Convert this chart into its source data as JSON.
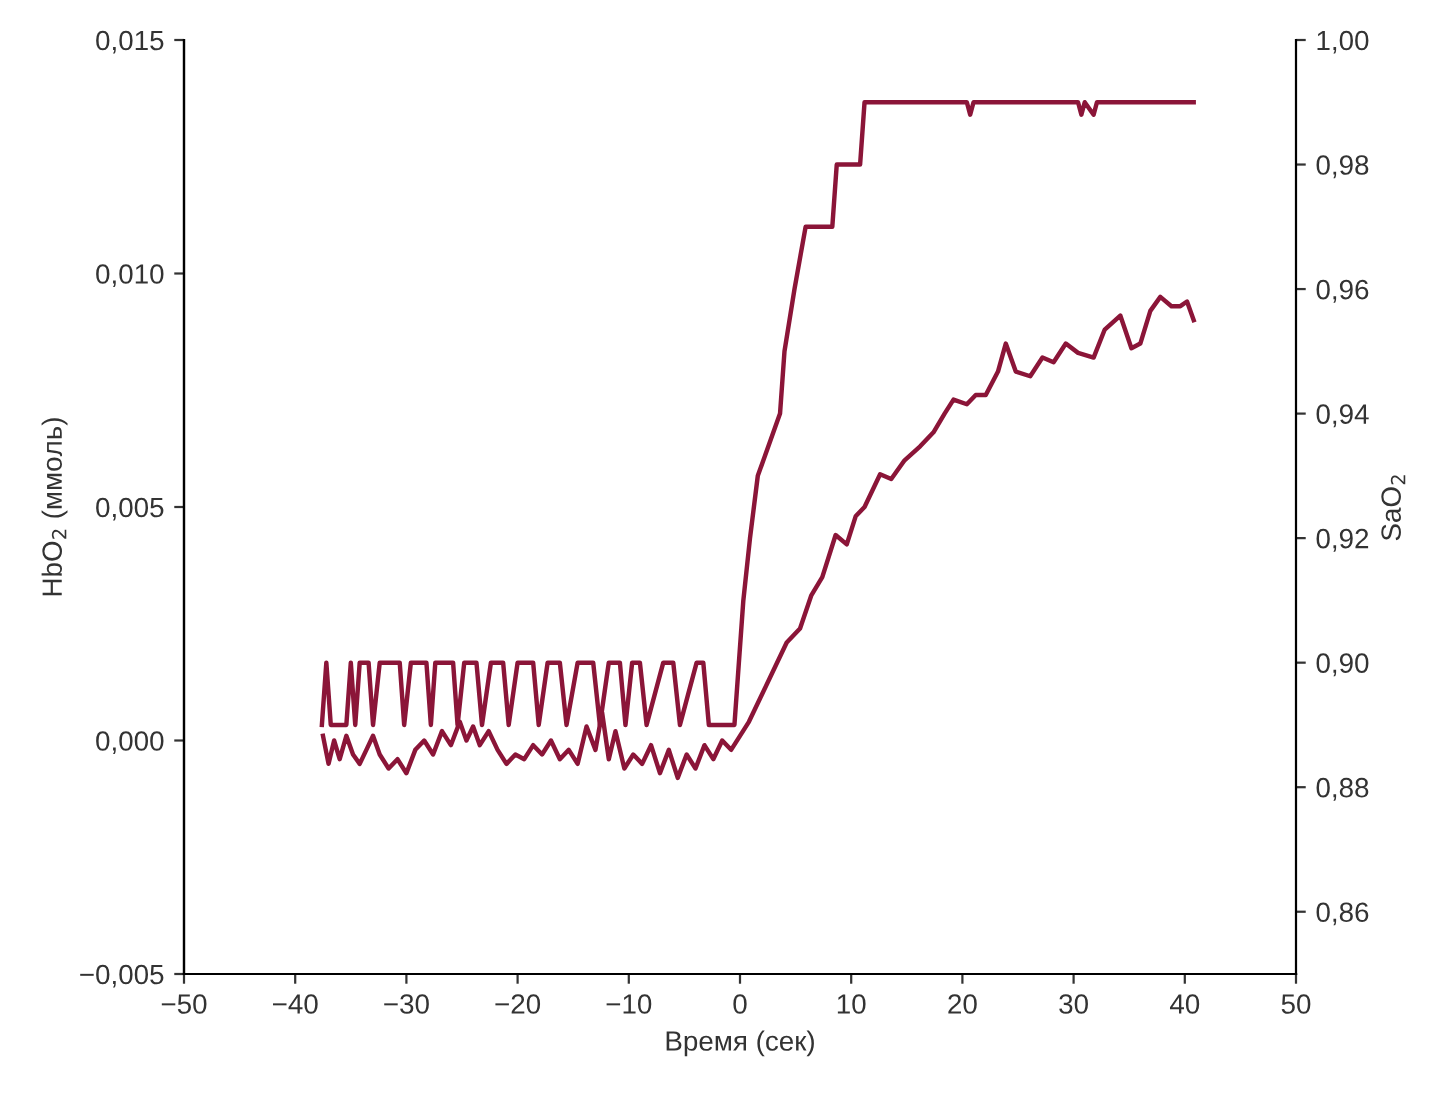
{
  "chart_data": {
    "type": "line",
    "xlabel": "Время (сек)",
    "ylabel": "HbO$_{2}$ (ммоль)",
    "y2label": "SaO$_{2}$",
    "xlim": [
      -50,
      50
    ],
    "xticks": [
      {
        "value": -50,
        "label": "−50"
      },
      {
        "value": -40,
        "label": "−40"
      },
      {
        "value": -30,
        "label": "−30"
      },
      {
        "value": -20,
        "label": "−20"
      },
      {
        "value": -10,
        "label": "−10"
      },
      0,
      10,
      20,
      30,
      40,
      50
    ],
    "ylim": [
      -0.005,
      0.015
    ],
    "yticks": [
      {
        "value": -0.005,
        "label": "−0,005"
      },
      {
        "value": 0,
        "label": "0,000"
      },
      {
        "value": 0.005,
        "label": "0,005"
      },
      {
        "value": 0.01,
        "label": "0,010"
      },
      {
        "value": 0.015,
        "label": "0,015"
      }
    ],
    "y2lim": [
      0.85,
      1.0
    ],
    "y2ticks": [
      {
        "value": 0.86,
        "label": "0,86"
      },
      {
        "value": 0.88,
        "label": "0,88"
      },
      {
        "value": 0.9,
        "label": "0,90"
      },
      {
        "value": 0.92,
        "label": "0,92"
      },
      {
        "value": 0.94,
        "label": "0,94"
      },
      {
        "value": 0.96,
        "label": "0,96"
      },
      {
        "value": 0.98,
        "label": "0,98"
      },
      {
        "value": 1.0,
        "label": "1,00"
      }
    ],
    "series": [
      {
        "color": "#8b1538",
        "axis": "y2",
        "x": [
          -37.6,
          -37.2,
          -36.8,
          -35.4,
          -35.0,
          -34.6,
          -34.2,
          -33.4,
          -33.0,
          -32.4,
          -30.6,
          -30.2,
          -29.6,
          -28.2,
          -27.8,
          -27.4,
          -25.8,
          -25.4,
          -24.8,
          -23.7,
          -23.2,
          -22.4,
          -21.3,
          -20.8,
          -20.0,
          -18.6,
          -18.1,
          -17.3,
          -16.2,
          -15.6,
          -14.6,
          -13.2,
          -12.6,
          -11.8,
          -10.8,
          -10.3,
          -9.7,
          -9.0,
          -8.4,
          -6.9,
          -6.0,
          -5.4,
          -3.9,
          -3.3,
          -2.8,
          -0.5,
          0.3,
          0.9,
          1.6,
          3.6,
          4.0,
          4.9,
          5.9,
          8.3,
          8.7,
          10.8,
          11.2,
          20.4,
          20.7,
          21.0,
          30.4,
          30.7,
          31.0,
          31.8,
          32.1,
          40.8
        ],
        "values": [
          0.89,
          0.9,
          0.89,
          0.89,
          0.9,
          0.89,
          0.9,
          0.9,
          0.89,
          0.9,
          0.9,
          0.89,
          0.9,
          0.9,
          0.89,
          0.9,
          0.9,
          0.89,
          0.9,
          0.9,
          0.89,
          0.9,
          0.9,
          0.89,
          0.9,
          0.9,
          0.89,
          0.9,
          0.9,
          0.89,
          0.9,
          0.9,
          0.89,
          0.9,
          0.9,
          0.89,
          0.9,
          0.9,
          0.89,
          0.9,
          0.9,
          0.89,
          0.9,
          0.9,
          0.89,
          0.89,
          0.91,
          0.92,
          0.93,
          0.94,
          0.95,
          0.96,
          0.97,
          0.97,
          0.98,
          0.98,
          0.99,
          0.99,
          0.988,
          0.99,
          0.99,
          0.988,
          0.99,
          0.988,
          0.99,
          0.99
        ]
      },
      {
        "color": "#8b1538",
        "axis": "y",
        "x": [
          -37.5,
          -37.0,
          -36.5,
          -36.0,
          -35.4,
          -34.8,
          -34.2,
          -33.6,
          -33.0,
          -32.4,
          -31.6,
          -30.8,
          -30.0,
          -29.2,
          -28.4,
          -27.6,
          -26.8,
          -26.0,
          -25.2,
          -24.6,
          -24.0,
          -23.4,
          -22.6,
          -21.8,
          -21.0,
          -20.2,
          -19.4,
          -18.6,
          -17.8,
          -17.0,
          -16.2,
          -15.4,
          -14.6,
          -13.8,
          -13.0,
          -12.4,
          -11.8,
          -11.2,
          -10.4,
          -9.6,
          -8.8,
          -8.0,
          -7.2,
          -6.4,
          -5.6,
          -4.8,
          -4.0,
          -3.2,
          -2.4,
          -1.6,
          -0.8,
          0.0,
          0.8,
          1.8,
          3.0,
          4.2,
          5.4,
          6.4,
          7.4,
          8.6,
          9.6,
          10.4,
          11.2,
          12.0,
          12.6,
          13.6,
          14.8,
          16.2,
          17.4,
          18.4,
          19.2,
          20.4,
          21.2,
          22.1,
          23.2,
          23.9,
          24.8,
          26.1,
          27.2,
          28.2,
          29.3,
          30.4,
          31.8,
          32.8,
          34.2,
          35.2,
          36.0,
          36.9,
          37.8,
          38.8,
          39.6,
          40.2,
          40.8
        ],
        "values": [
          0.0001,
          -0.0005,
          0.0,
          -0.0004,
          0.0001,
          -0.0003,
          -0.0005,
          -0.0002,
          0.0001,
          -0.0003,
          -0.0006,
          -0.0004,
          -0.0007,
          -0.0002,
          0.0,
          -0.0003,
          0.0002,
          -0.0001,
          0.0004,
          0.0,
          0.0003,
          -0.0001,
          0.0002,
          -0.0002,
          -0.0005,
          -0.0003,
          -0.0004,
          -0.0001,
          -0.0003,
          0.0,
          -0.0004,
          -0.0002,
          -0.0005,
          0.0003,
          -0.0002,
          0.0006,
          -0.0004,
          0.0002,
          -0.0006,
          -0.0003,
          -0.0005,
          -0.0001,
          -0.0007,
          -0.0002,
          -0.0008,
          -0.0003,
          -0.0006,
          -0.0001,
          -0.0004,
          0.0,
          -0.0002,
          0.0001,
          0.0004,
          0.0009,
          0.0015,
          0.0021,
          0.0024,
          0.0031,
          0.0035,
          0.0044,
          0.0042,
          0.0048,
          0.005,
          0.0054,
          0.0057,
          0.0056,
          0.006,
          0.0063,
          0.0066,
          0.007,
          0.0073,
          0.0072,
          0.0074,
          0.0074,
          0.0079,
          0.0085,
          0.0079,
          0.0078,
          0.0082,
          0.0081,
          0.0085,
          0.0083,
          0.0082,
          0.0088,
          0.0091,
          0.0084,
          0.0085,
          0.0092,
          0.0095,
          0.0093,
          0.0093,
          0.0094,
          0.009
        ]
      }
    ]
  }
}
